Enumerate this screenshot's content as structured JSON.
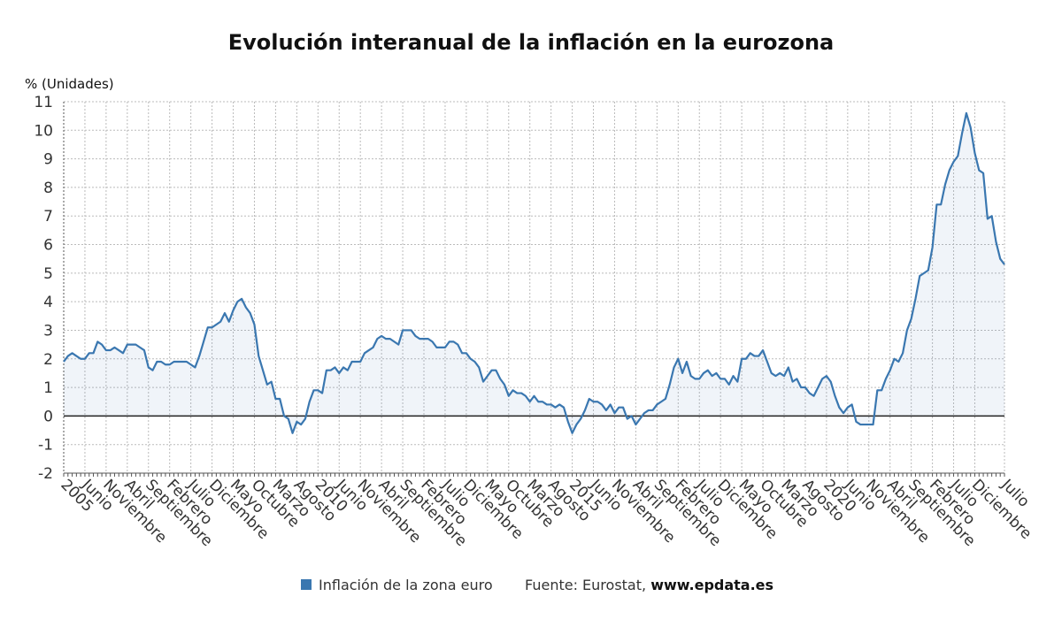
{
  "chart_data": {
    "type": "line",
    "title": "Evolución interanual de la inflación en la eurozona",
    "y_label": "% (Unidades)",
    "source": "Fuente: Eurostat,",
    "source_link": "www.epdata.es",
    "grid": true,
    "ylim": [
      -2,
      11
    ],
    "yticks": [
      -2,
      -1,
      0,
      1,
      2,
      3,
      4,
      5,
      6,
      7,
      8,
      9,
      10,
      11
    ],
    "categories": [
      "2005",
      null,
      null,
      null,
      null,
      "Junio",
      null,
      null,
      null,
      null,
      "Noviembre",
      null,
      null,
      null,
      null,
      "Abril",
      null,
      null,
      null,
      null,
      "Septiembre",
      null,
      null,
      null,
      null,
      "Febrero",
      null,
      null,
      null,
      null,
      "Julio",
      null,
      null,
      null,
      null,
      "Diciembre",
      null,
      null,
      null,
      null,
      "Mayo",
      null,
      null,
      null,
      null,
      "Octubre",
      null,
      null,
      null,
      null,
      "Marzo",
      null,
      null,
      null,
      null,
      "Agosto",
      null,
      null,
      null,
      null,
      "2010",
      null,
      null,
      null,
      null,
      "Junio",
      null,
      null,
      null,
      null,
      "Noviembre",
      null,
      null,
      null,
      null,
      "Abril",
      null,
      null,
      null,
      null,
      "Septiembre",
      null,
      null,
      null,
      null,
      "Febrero",
      null,
      null,
      null,
      null,
      "Julio",
      null,
      null,
      null,
      null,
      "Diciembre",
      null,
      null,
      null,
      null,
      "Mayo",
      null,
      null,
      null,
      null,
      "Octubre",
      null,
      null,
      null,
      null,
      "Marzo",
      null,
      null,
      null,
      null,
      "Agosto",
      null,
      null,
      null,
      null,
      "2015",
      null,
      null,
      null,
      null,
      "Junio",
      null,
      null,
      null,
      null,
      "Noviembre",
      null,
      null,
      null,
      null,
      "Abril",
      null,
      null,
      null,
      null,
      "Septiembre",
      null,
      null,
      null,
      null,
      "Febrero",
      null,
      null,
      null,
      null,
      "Julio",
      null,
      null,
      null,
      null,
      "Diciembre",
      null,
      null,
      null,
      null,
      "Mayo",
      null,
      null,
      null,
      null,
      "Octubre",
      null,
      null,
      null,
      null,
      "Marzo",
      null,
      null,
      null,
      null,
      "Agosto",
      null,
      null,
      null,
      null,
      "2020",
      null,
      null,
      null,
      null,
      "Junio",
      null,
      null,
      null,
      null,
      "Noviembre",
      null,
      null,
      null,
      null,
      "Abril",
      null,
      null,
      null,
      null,
      "Septiembre",
      null,
      null,
      null,
      null,
      "Febrero",
      null,
      null,
      null,
      null,
      "Julio",
      null,
      null,
      null,
      null,
      "Diciembre",
      null,
      null,
      null,
      null,
      null,
      null,
      "Julio"
    ],
    "series": [
      {
        "name": "Inflación de la zona euro",
        "color": "#3a77b0",
        "values": [
          1.9,
          2.1,
          2.2,
          2.1,
          2.0,
          2.0,
          2.2,
          2.2,
          2.6,
          2.5,
          2.3,
          2.3,
          2.4,
          2.3,
          2.2,
          2.5,
          2.5,
          2.5,
          2.4,
          2.3,
          1.7,
          1.6,
          1.9,
          1.9,
          1.8,
          1.8,
          1.9,
          1.9,
          1.9,
          1.9,
          1.8,
          1.7,
          2.1,
          2.6,
          3.1,
          3.1,
          3.2,
          3.3,
          3.6,
          3.3,
          3.7,
          4.0,
          4.1,
          3.8,
          3.6,
          3.2,
          2.1,
          1.6,
          1.1,
          1.2,
          0.6,
          0.6,
          0.0,
          -0.1,
          -0.6,
          -0.2,
          -0.3,
          -0.1,
          0.5,
          0.9,
          0.9,
          0.8,
          1.6,
          1.6,
          1.7,
          1.5,
          1.7,
          1.6,
          1.9,
          1.9,
          1.9,
          2.2,
          2.3,
          2.4,
          2.7,
          2.8,
          2.7,
          2.7,
          2.6,
          2.5,
          3.0,
          3.0,
          3.0,
          2.8,
          2.7,
          2.7,
          2.7,
          2.6,
          2.4,
          2.4,
          2.4,
          2.6,
          2.6,
          2.5,
          2.2,
          2.2,
          2.0,
          1.9,
          1.7,
          1.2,
          1.4,
          1.6,
          1.6,
          1.3,
          1.1,
          0.7,
          0.9,
          0.8,
          0.8,
          0.7,
          0.5,
          0.7,
          0.5,
          0.5,
          0.4,
          0.4,
          0.3,
          0.4,
          0.3,
          -0.2,
          -0.6,
          -0.3,
          -0.1,
          0.2,
          0.6,
          0.5,
          0.5,
          0.4,
          0.2,
          0.4,
          0.1,
          0.3,
          0.3,
          -0.1,
          0.0,
          -0.3,
          -0.1,
          0.1,
          0.2,
          0.2,
          0.4,
          0.5,
          0.6,
          1.1,
          1.7,
          2.0,
          1.5,
          1.9,
          1.4,
          1.3,
          1.3,
          1.5,
          1.6,
          1.4,
          1.5,
          1.3,
          1.3,
          1.1,
          1.4,
          1.2,
          2.0,
          2.0,
          2.2,
          2.1,
          2.1,
          2.3,
          1.9,
          1.5,
          1.4,
          1.5,
          1.4,
          1.7,
          1.2,
          1.3,
          1.0,
          1.0,
          0.8,
          0.7,
          1.0,
          1.3,
          1.4,
          1.2,
          0.7,
          0.3,
          0.1,
          0.3,
          0.4,
          -0.2,
          -0.3,
          -0.3,
          -0.3,
          -0.3,
          0.9,
          0.9,
          1.3,
          1.6,
          2.0,
          1.9,
          2.2,
          3.0,
          3.4,
          4.1,
          4.9,
          5.0,
          5.1,
          5.9,
          7.4,
          7.4,
          8.1,
          8.6,
          8.9,
          9.1,
          9.9,
          10.6,
          10.1,
          9.2,
          8.6,
          8.5,
          6.9,
          7.0,
          6.1,
          5.5,
          5.3
        ]
      }
    ]
  }
}
